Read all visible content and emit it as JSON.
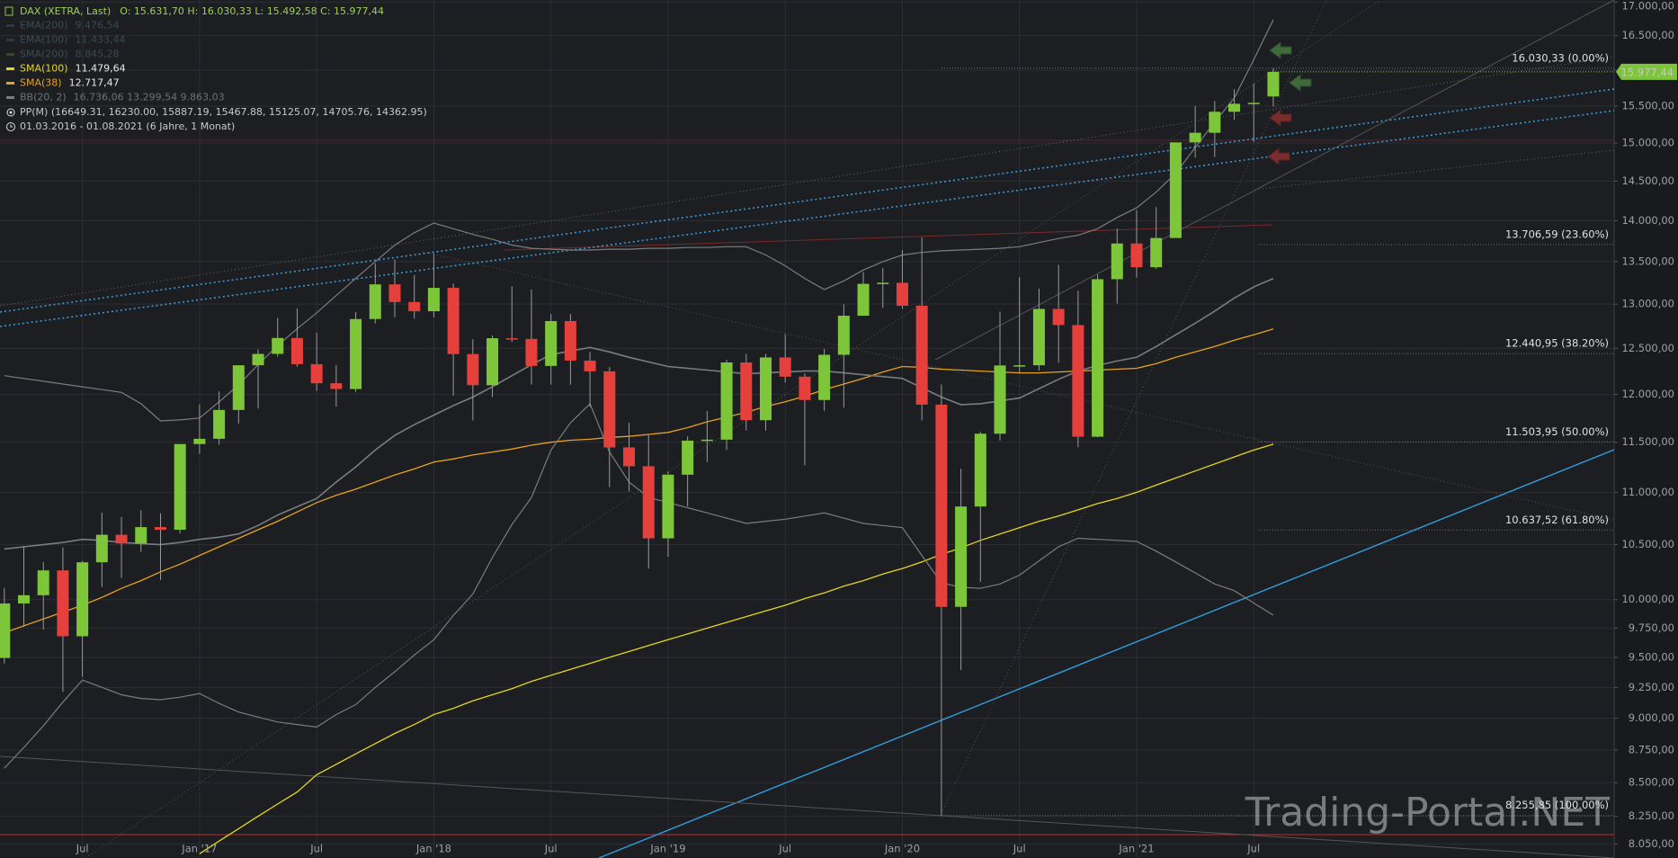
{
  "header": {
    "symbol": "DAX (XETRA, Last)",
    "ohlc": "O: 15.631,70  H: 16.030,33  L: 15.492,58  C: 15.977,44",
    "pivot": "PP(M)  (16649.31, 16230.00, 15887.19, 15467.88, 15125.07, 14705.76, 14362.95)",
    "range": "01.03.2016 - 01.08.2021   (6 Jahre, 1 Monat)",
    "watermark": "Trading-Portal.NET"
  },
  "chart_data": {
    "type": "candlestick",
    "log_scale": true,
    "grid": true,
    "up_color": "#7dc63a",
    "down_color": "#e5403b",
    "categories": [
      null,
      null,
      null,
      null,
      "Jul",
      null,
      null,
      null,
      null,
      null,
      "Jan '17",
      null,
      null,
      null,
      null,
      null,
      "Jul",
      null,
      null,
      null,
      null,
      null,
      "Jan '18",
      null,
      null,
      null,
      null,
      null,
      "Jul",
      null,
      null,
      null,
      null,
      null,
      "Jan '19",
      null,
      null,
      null,
      null,
      null,
      "Jul",
      null,
      null,
      null,
      null,
      null,
      "Jan '20",
      null,
      null,
      null,
      null,
      null,
      "Jul",
      null,
      null,
      null,
      null,
      null,
      "Jan '21",
      null,
      null,
      null,
      null,
      null,
      "Jul",
      null
    ],
    "open": [
      9495,
      9966,
      10039,
      10263,
      9680,
      10337,
      10593,
      10511,
      10665,
      10640,
      11481,
      11535,
      11834,
      12313,
      12438,
      12615,
      12325,
      12118,
      12056,
      12829,
      13230,
      13024,
      12918,
      13189,
      12436,
      12097,
      12612,
      12605,
      12306,
      12806,
      12364,
      12247,
      11447,
      11257,
      10559,
      11173,
      11516,
      11526,
      12344,
      11727,
      12399,
      12189,
      11939,
      12428,
      12867,
      13236,
      13249,
      12981,
      11890,
      9936,
      10862,
      11587,
      12311,
      12313,
      12945,
      12761,
      11556,
      13291,
      13719,
      13433,
      13786,
      15008,
      15136,
      15421,
      15531,
      15631.7
    ],
    "high": [
      10104,
      10486,
      10340,
      10475,
      10350,
      10802,
      10761,
      10827,
      10797,
      11482,
      11893,
      12032,
      12313,
      12486,
      12842,
      12951,
      12676,
      12316,
      12910,
      13479,
      13526,
      13339,
      13597,
      13239,
      12600,
      12644,
      13205,
      13170,
      12887,
      12887,
      12460,
      12294,
      11700,
      11571,
      11206,
      11562,
      11823,
      12375,
      12437,
      12438,
      12656,
      12224,
      12494,
      12998,
      13374,
      13425,
      13640,
      13795,
      12105,
      11231,
      11608,
      12913,
      13314,
      13181,
      13460,
      13155,
      13345,
      13903,
      14131,
      14169,
      15008,
      15501,
      15569,
      15732,
      15810,
      16030.33
    ],
    "low": [
      9448,
      9760,
      9737,
      9214,
      9337,
      10113,
      10195,
      10431,
      10175,
      10606,
      11381,
      11476,
      11690,
      11850,
      12406,
      12297,
      12036,
      11868,
      12024,
      12779,
      12847,
      12833,
      12846,
      11986,
      11726,
      11970,
      12570,
      12103,
      12104,
      12104,
      11865,
      11051,
      11009,
      10279,
      10387,
      10863,
      11299,
      11421,
      11620,
      11620,
      12126,
      11266,
      11825,
      11857,
      12867,
      12956,
      12948,
      11724,
      8256,
      9393,
      10160,
      11517,
      12230,
      12254,
      12340,
      11450,
      11551,
      13006,
      13310,
      13411,
      13825,
      14806,
      14816,
      15313,
      15012,
      15492.58
    ],
    "close": [
      9966,
      10039,
      10263,
      9680,
      10337,
      10593,
      10511,
      10665,
      10640,
      11481,
      11535,
      11834,
      12313,
      12438,
      12615,
      12325,
      12118,
      12056,
      12829,
      13230,
      13024,
      12918,
      13189,
      12436,
      12097,
      12612,
      12605,
      12306,
      12806,
      12364,
      12247,
      11447,
      11257,
      10559,
      11173,
      11516,
      11526,
      12344,
      11727,
      12399,
      12189,
      11939,
      12428,
      12867,
      13236,
      13249,
      12981,
      11890,
      9936,
      10862,
      11587,
      12311,
      12313,
      12945,
      12761,
      11556,
      13291,
      13719,
      13433,
      13786,
      15008,
      15136,
      15421,
      15531,
      15544,
      15977.44
    ],
    "series": [
      {
        "name": "EMA(200)",
        "value_label": "9.476,54",
        "color": "#2e4a56",
        "active": false
      },
      {
        "name": "EMA(100)",
        "value_label": "11.433,44",
        "color": "#2e4a56",
        "active": false
      },
      {
        "name": "SMA(200)",
        "value_label": "8.845,28",
        "color": "#5a5528",
        "active": false
      },
      {
        "name": "SMA(100)",
        "value_label": "11.479,64",
        "color": "#e6d619",
        "active": true,
        "values": [
          null,
          null,
          null,
          null,
          null,
          null,
          null,
          null,
          null,
          null,
          7980,
          8070,
          8160,
          8250,
          8340,
          8430,
          8560,
          8640,
          8720,
          8800,
          8880,
          8950,
          9030,
          9080,
          9140,
          9190,
          9240,
          9300,
          9350,
          9400,
          9450,
          9500,
          9550,
          9600,
          9650,
          9700,
          9750,
          9800,
          9850,
          9900,
          9950,
          10010,
          10060,
          10120,
          10170,
          10230,
          10280,
          10340,
          10410,
          10470,
          10540,
          10600,
          10660,
          10720,
          10770,
          10830,
          10890,
          10940,
          11000,
          11070,
          11140,
          11210,
          11280,
          11350,
          11420,
          11479.64
        ]
      },
      {
        "name": "SMA(38)",
        "value_label": "12.717,47",
        "color": "#e8a21c",
        "active": true,
        "values": [
          9710,
          9770,
          9830,
          9890,
          9950,
          10020,
          10100,
          10170,
          10250,
          10320,
          10400,
          10480,
          10560,
          10640,
          10720,
          10810,
          10900,
          10970,
          11030,
          11100,
          11170,
          11230,
          11300,
          11330,
          11370,
          11400,
          11430,
          11470,
          11500,
          11520,
          11530,
          11550,
          11560,
          11580,
          11600,
          11650,
          11710,
          11760,
          11810,
          11870,
          11920,
          11980,
          12050,
          12110,
          12170,
          12240,
          12300,
          12290,
          12270,
          12260,
          12250,
          12240,
          12230,
          12230,
          12240,
          12250,
          12260,
          12270,
          12280,
          12330,
          12400,
          12460,
          12520,
          12590,
          12650,
          12717.47
        ]
      },
      {
        "name": "BB(20, 2)",
        "value_label": "16.736,06  13.299,54  9.863,03",
        "color": "#7a7c80",
        "active": true,
        "upper": [
          12200,
          12170,
          12140,
          12110,
          12080,
          12050,
          12020,
          11900,
          11720,
          11730,
          11750,
          11920,
          12100,
          12320,
          12530,
          12720,
          12900,
          13100,
          13300,
          13500,
          13700,
          13850,
          13970,
          13900,
          13830,
          13770,
          13700,
          13660,
          13650,
          13640,
          13640,
          13650,
          13650,
          13660,
          13660,
          13670,
          13670,
          13680,
          13680,
          13580,
          13450,
          13300,
          13170,
          13270,
          13400,
          13500,
          13580,
          13610,
          13630,
          13640,
          13650,
          13660,
          13680,
          13730,
          13780,
          13820,
          13900,
          14040,
          14160,
          14360,
          14600,
          14940,
          15280,
          15610,
          16150,
          16736.06
        ],
        "middle": [
          10460,
          10480,
          10500,
          10520,
          10550,
          10540,
          10520,
          10510,
          10500,
          10520,
          10550,
          10570,
          10600,
          10680,
          10780,
          10860,
          10940,
          11100,
          11250,
          11420,
          11570,
          11680,
          11780,
          11880,
          11970,
          12080,
          12200,
          12320,
          12430,
          12470,
          12510,
          12460,
          12400,
          12350,
          12300,
          12280,
          12260,
          12240,
          12220,
          12230,
          12240,
          12250,
          12250,
          12230,
          12210,
          12190,
          12170,
          12070,
          11970,
          11890,
          11900,
          11930,
          11960,
          12060,
          12160,
          12250,
          12310,
          12360,
          12400,
          12520,
          12650,
          12780,
          12920,
          13070,
          13200,
          13299.54
        ],
        "lower": [
          8610,
          8770,
          8940,
          9130,
          9310,
          9250,
          9190,
          9160,
          9150,
          9170,
          9200,
          9120,
          9050,
          9010,
          8970,
          8950,
          8930,
          9030,
          9110,
          9250,
          9380,
          9520,
          9650,
          9860,
          10050,
          10380,
          10690,
          10950,
          11420,
          11700,
          11900,
          11400,
          11100,
          10950,
          10900,
          10850,
          10800,
          10750,
          10700,
          10720,
          10740,
          10770,
          10800,
          10750,
          10700,
          10680,
          10660,
          10400,
          10150,
          10110,
          10100,
          10140,
          10220,
          10350,
          10480,
          10560,
          10550,
          10540,
          10530,
          10440,
          10340,
          10240,
          10140,
          10080,
          9970,
          9863.03
        ]
      }
    ],
    "fib_levels": [
      {
        "value": 16030.33,
        "label": "16.030,33 (0.00%)"
      },
      {
        "value": 13706.59,
        "label": "13.706,59 (23.60%)"
      },
      {
        "value": 12440.95,
        "label": "12.440,95 (38.20%)"
      },
      {
        "value": 11503.95,
        "label": "11.503,95 (50.00%)"
      },
      {
        "value": 10637.52,
        "label": "10.637,52 (61.80%)"
      },
      {
        "value": 8255.85,
        "label": "8.255,85 (100.00%)"
      }
    ],
    "last_price": {
      "value": 15977.44,
      "label": "15.977,44"
    },
    "ylim": [
      7950,
      17030
    ],
    "yticks": [
      {
        "value": 8050,
        "label": "8.050,00"
      },
      {
        "value": 8250,
        "label": "8.250,00"
      },
      {
        "value": 8500,
        "label": "8.500,00"
      },
      {
        "value": 8750,
        "label": "8.750,00"
      },
      {
        "value": 9000,
        "label": "9.000,00"
      },
      {
        "value": 9250,
        "label": "9.250,00"
      },
      {
        "value": 9500,
        "label": "9.500,00"
      },
      {
        "value": 9750,
        "label": "9.750,00"
      },
      {
        "value": 10000,
        "label": "10.000,00"
      },
      {
        "value": 10500,
        "label": "10.500,00"
      },
      {
        "value": 11000,
        "label": "11.000,00"
      },
      {
        "value": 11500,
        "label": "11.500,00"
      },
      {
        "value": 12000,
        "label": "12.000,00"
      },
      {
        "value": 12500,
        "label": "12.500,00"
      },
      {
        "value": 13000,
        "label": "13.000,00"
      },
      {
        "value": 13500,
        "label": "13.500,00"
      },
      {
        "value": 14000,
        "label": "14.000,00"
      },
      {
        "value": 14500,
        "label": "14.500,00"
      },
      {
        "value": 15000,
        "label": "15.000,00"
      },
      {
        "value": 15500,
        "label": "15.500,00"
      },
      {
        "value": 16000,
        "label": "16.000,00"
      },
      {
        "value": 16500,
        "label": "16.500,00"
      },
      {
        "value": 17000,
        "label": "17.000,00"
      }
    ]
  }
}
